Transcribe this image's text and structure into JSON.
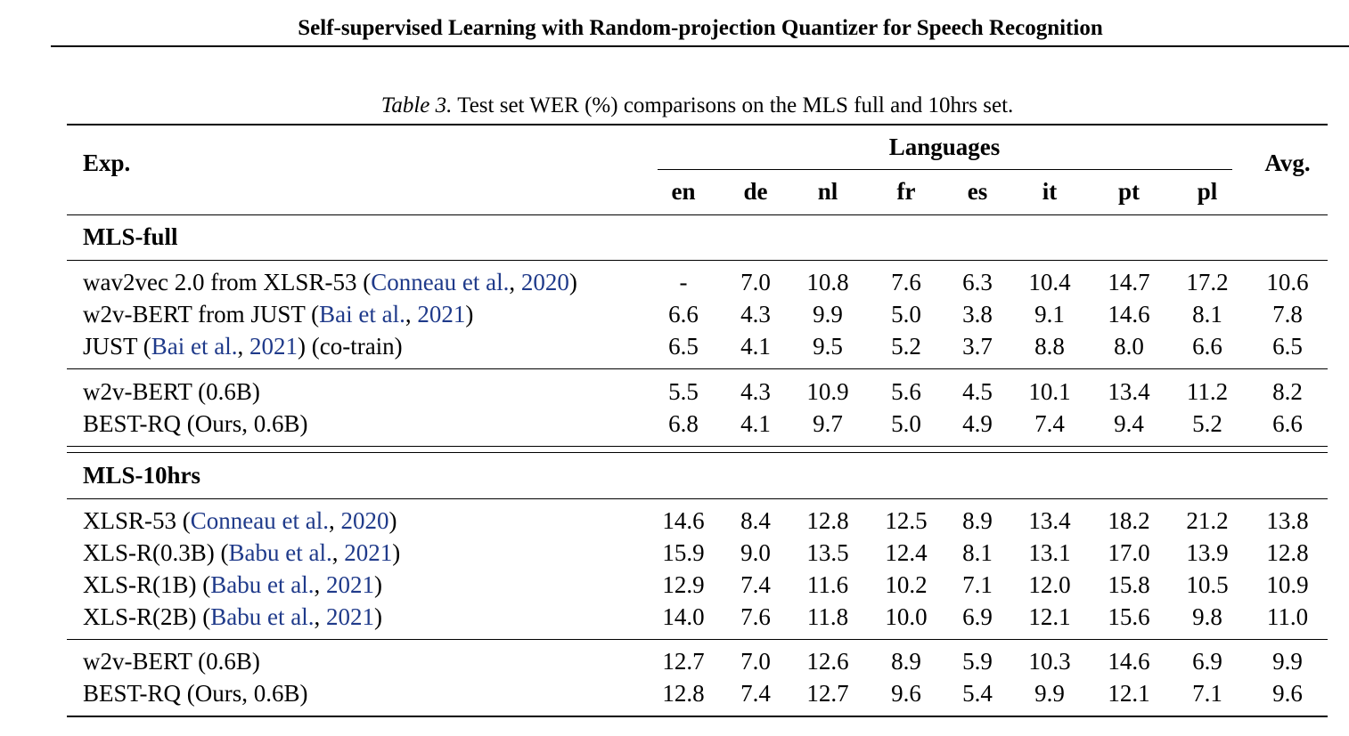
{
  "running_header": "Self-supervised Learning with Random-projection Quantizer for Speech Recognition",
  "caption": {
    "label": "Table 3.",
    "text": "Test set WER (%) comparisons on the MLS full and 10hrs set."
  },
  "header": {
    "exp": "Exp.",
    "languages": "Languages",
    "avg": "Avg.",
    "langs": [
      "en",
      "de",
      "nl",
      "fr",
      "es",
      "it",
      "pt",
      "pl"
    ]
  },
  "sections": [
    {
      "title": "MLS-full",
      "groups": [
        [
          {
            "pre": "wav2vec 2.0 from XLSR-53 (",
            "cite_a": "Conneau et al.",
            "mid": ", ",
            "cite_b": "2020",
            "post": ")",
            "values": [
              "-",
              "7.0",
              "10.8",
              "7.6",
              "6.3",
              "10.4",
              "14.7",
              "17.2",
              "10.6"
            ]
          },
          {
            "pre": "w2v-BERT from JUST (",
            "cite_a": "Bai et al.",
            "mid": ", ",
            "cite_b": "2021",
            "post": ")",
            "values": [
              "6.6",
              "4.3",
              "9.9",
              "5.0",
              "3.8",
              "9.1",
              "14.6",
              "8.1",
              "7.8"
            ]
          },
          {
            "pre": "JUST (",
            "cite_a": "Bai et al.",
            "mid": ", ",
            "cite_b": "2021",
            "post": ") (co-train)",
            "values": [
              "6.5",
              "4.1",
              "9.5",
              "5.2",
              "3.7",
              "8.8",
              "8.0",
              "6.6",
              "6.5"
            ]
          }
        ],
        [
          {
            "pre": "w2v-BERT (0.6B)",
            "cite_a": "",
            "mid": "",
            "cite_b": "",
            "post": "",
            "values": [
              "5.5",
              "4.3",
              "10.9",
              "5.6",
              "4.5",
              "10.1",
              "13.4",
              "11.2",
              "8.2"
            ]
          },
          {
            "pre": "BEST-RQ (Ours, 0.6B)",
            "cite_a": "",
            "mid": "",
            "cite_b": "",
            "post": "",
            "values": [
              "6.8",
              "4.1",
              "9.7",
              "5.0",
              "4.9",
              "7.4",
              "9.4",
              "5.2",
              "6.6"
            ]
          }
        ]
      ]
    },
    {
      "title": "MLS-10hrs",
      "groups": [
        [
          {
            "pre": "XLSR-53 (",
            "cite_a": "Conneau et al.",
            "mid": ", ",
            "cite_b": "2020",
            "post": ")",
            "values": [
              "14.6",
              "8.4",
              "12.8",
              "12.5",
              "8.9",
              "13.4",
              "18.2",
              "21.2",
              "13.8"
            ]
          },
          {
            "pre": "XLS-R(0.3B) (",
            "cite_a": "Babu et al.",
            "mid": ", ",
            "cite_b": "2021",
            "post": ")",
            "values": [
              "15.9",
              "9.0",
              "13.5",
              "12.4",
              "8.1",
              "13.1",
              "17.0",
              "13.9",
              "12.8"
            ]
          },
          {
            "pre": "XLS-R(1B) (",
            "cite_a": "Babu et al.",
            "mid": ", ",
            "cite_b": "2021",
            "post": ")",
            "values": [
              "12.9",
              "7.4",
              "11.6",
              "10.2",
              "7.1",
              "12.0",
              "15.8",
              "10.5",
              "10.9"
            ]
          },
          {
            "pre": "XLS-R(2B) (",
            "cite_a": "Babu et al.",
            "mid": ", ",
            "cite_b": "2021",
            "post": ")",
            "values": [
              "14.0",
              "7.6",
              "11.8",
              "10.0",
              "6.9",
              "12.1",
              "15.6",
              "9.8",
              "11.0"
            ]
          }
        ],
        [
          {
            "pre": "w2v-BERT (0.6B)",
            "cite_a": "",
            "mid": "",
            "cite_b": "",
            "post": "",
            "values": [
              "12.7",
              "7.0",
              "12.6",
              "8.9",
              "5.9",
              "10.3",
              "14.6",
              "6.9",
              "9.9"
            ]
          },
          {
            "pre": "BEST-RQ (Ours, 0.6B)",
            "cite_a": "",
            "mid": "",
            "cite_b": "",
            "post": "",
            "values": [
              "12.8",
              "7.4",
              "12.7",
              "9.6",
              "5.4",
              "9.9",
              "12.1",
              "7.1",
              "9.6"
            ]
          }
        ]
      ]
    }
  ]
}
